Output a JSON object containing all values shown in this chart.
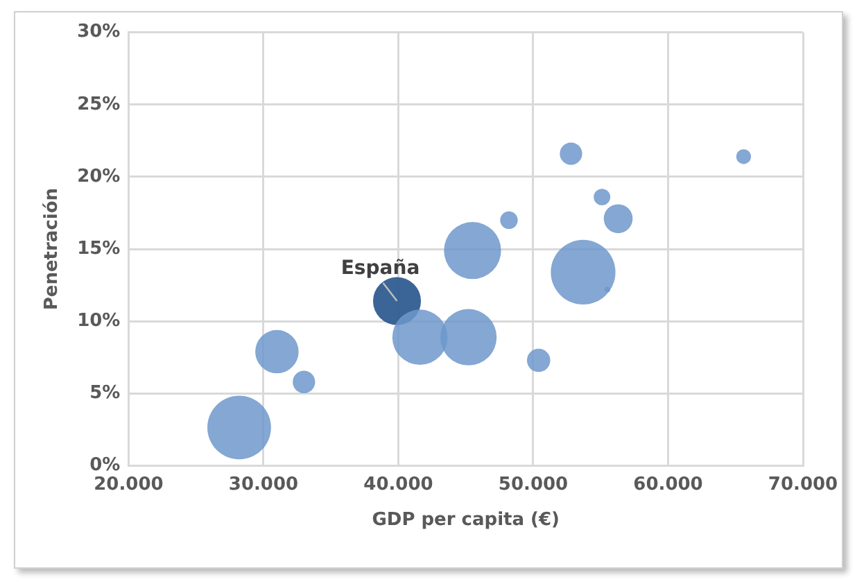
{
  "chart_data": {
    "type": "bubble",
    "xlabel": "GDP per capita (€)",
    "ylabel": "Penetración",
    "x": [
      28200,
      31000,
      33000,
      39900,
      41600,
      45200,
      45500,
      48200,
      50400,
      52800,
      53700,
      55100,
      55500,
      56300,
      65600
    ],
    "values": [
      2.65,
      7.9,
      5.8,
      11.4,
      8.9,
      8.9,
      14.9,
      17.0,
      7.3,
      21.6,
      13.4,
      18.6,
      12.2,
      17.1,
      21.4
    ],
    "sizes": [
      0.97,
      0.45,
      0.12,
      0.55,
      0.73,
      0.76,
      0.78,
      0.074,
      0.13,
      0.12,
      1,
      0.066,
      0.007,
      0.2,
      0.052
    ],
    "colors": [
      "#6e97cb",
      "#6e97cb",
      "#6e97cb",
      "#2f5b8f",
      "#6e97cb",
      "#6e97cb",
      "#6e97cb",
      "#6e97cb",
      "#6e97cb",
      "#6e97cb",
      "#6e97cb",
      "#6e97cb",
      "#6e97cb",
      "#6e97cb",
      "#6e97cb"
    ],
    "xlim": [
      20000,
      70000
    ],
    "xticks": [
      {
        "value": 20000,
        "label": "20.000"
      },
      {
        "value": 30000,
        "label": "30.000"
      },
      {
        "value": 40000,
        "label": "40.000"
      },
      {
        "value": 50000,
        "label": "50.000"
      },
      {
        "value": 60000,
        "label": "60.000"
      },
      {
        "value": 70000,
        "label": "70.000"
      }
    ],
    "ylim": [
      0,
      30
    ],
    "yticks": [
      {
        "value": 0,
        "label": "0%"
      },
      {
        "value": 5,
        "label": "5%"
      },
      {
        "value": 10,
        "label": "10%"
      },
      {
        "value": 15,
        "label": "15%"
      },
      {
        "value": 20,
        "label": "20%"
      },
      {
        "value": 25,
        "label": "25%"
      },
      {
        "value": 30,
        "label": "30%"
      }
    ],
    "annotations": [
      {
        "text": "España",
        "x": 39900,
        "y": 11.4
      }
    ],
    "grid": true,
    "legend": false
  }
}
